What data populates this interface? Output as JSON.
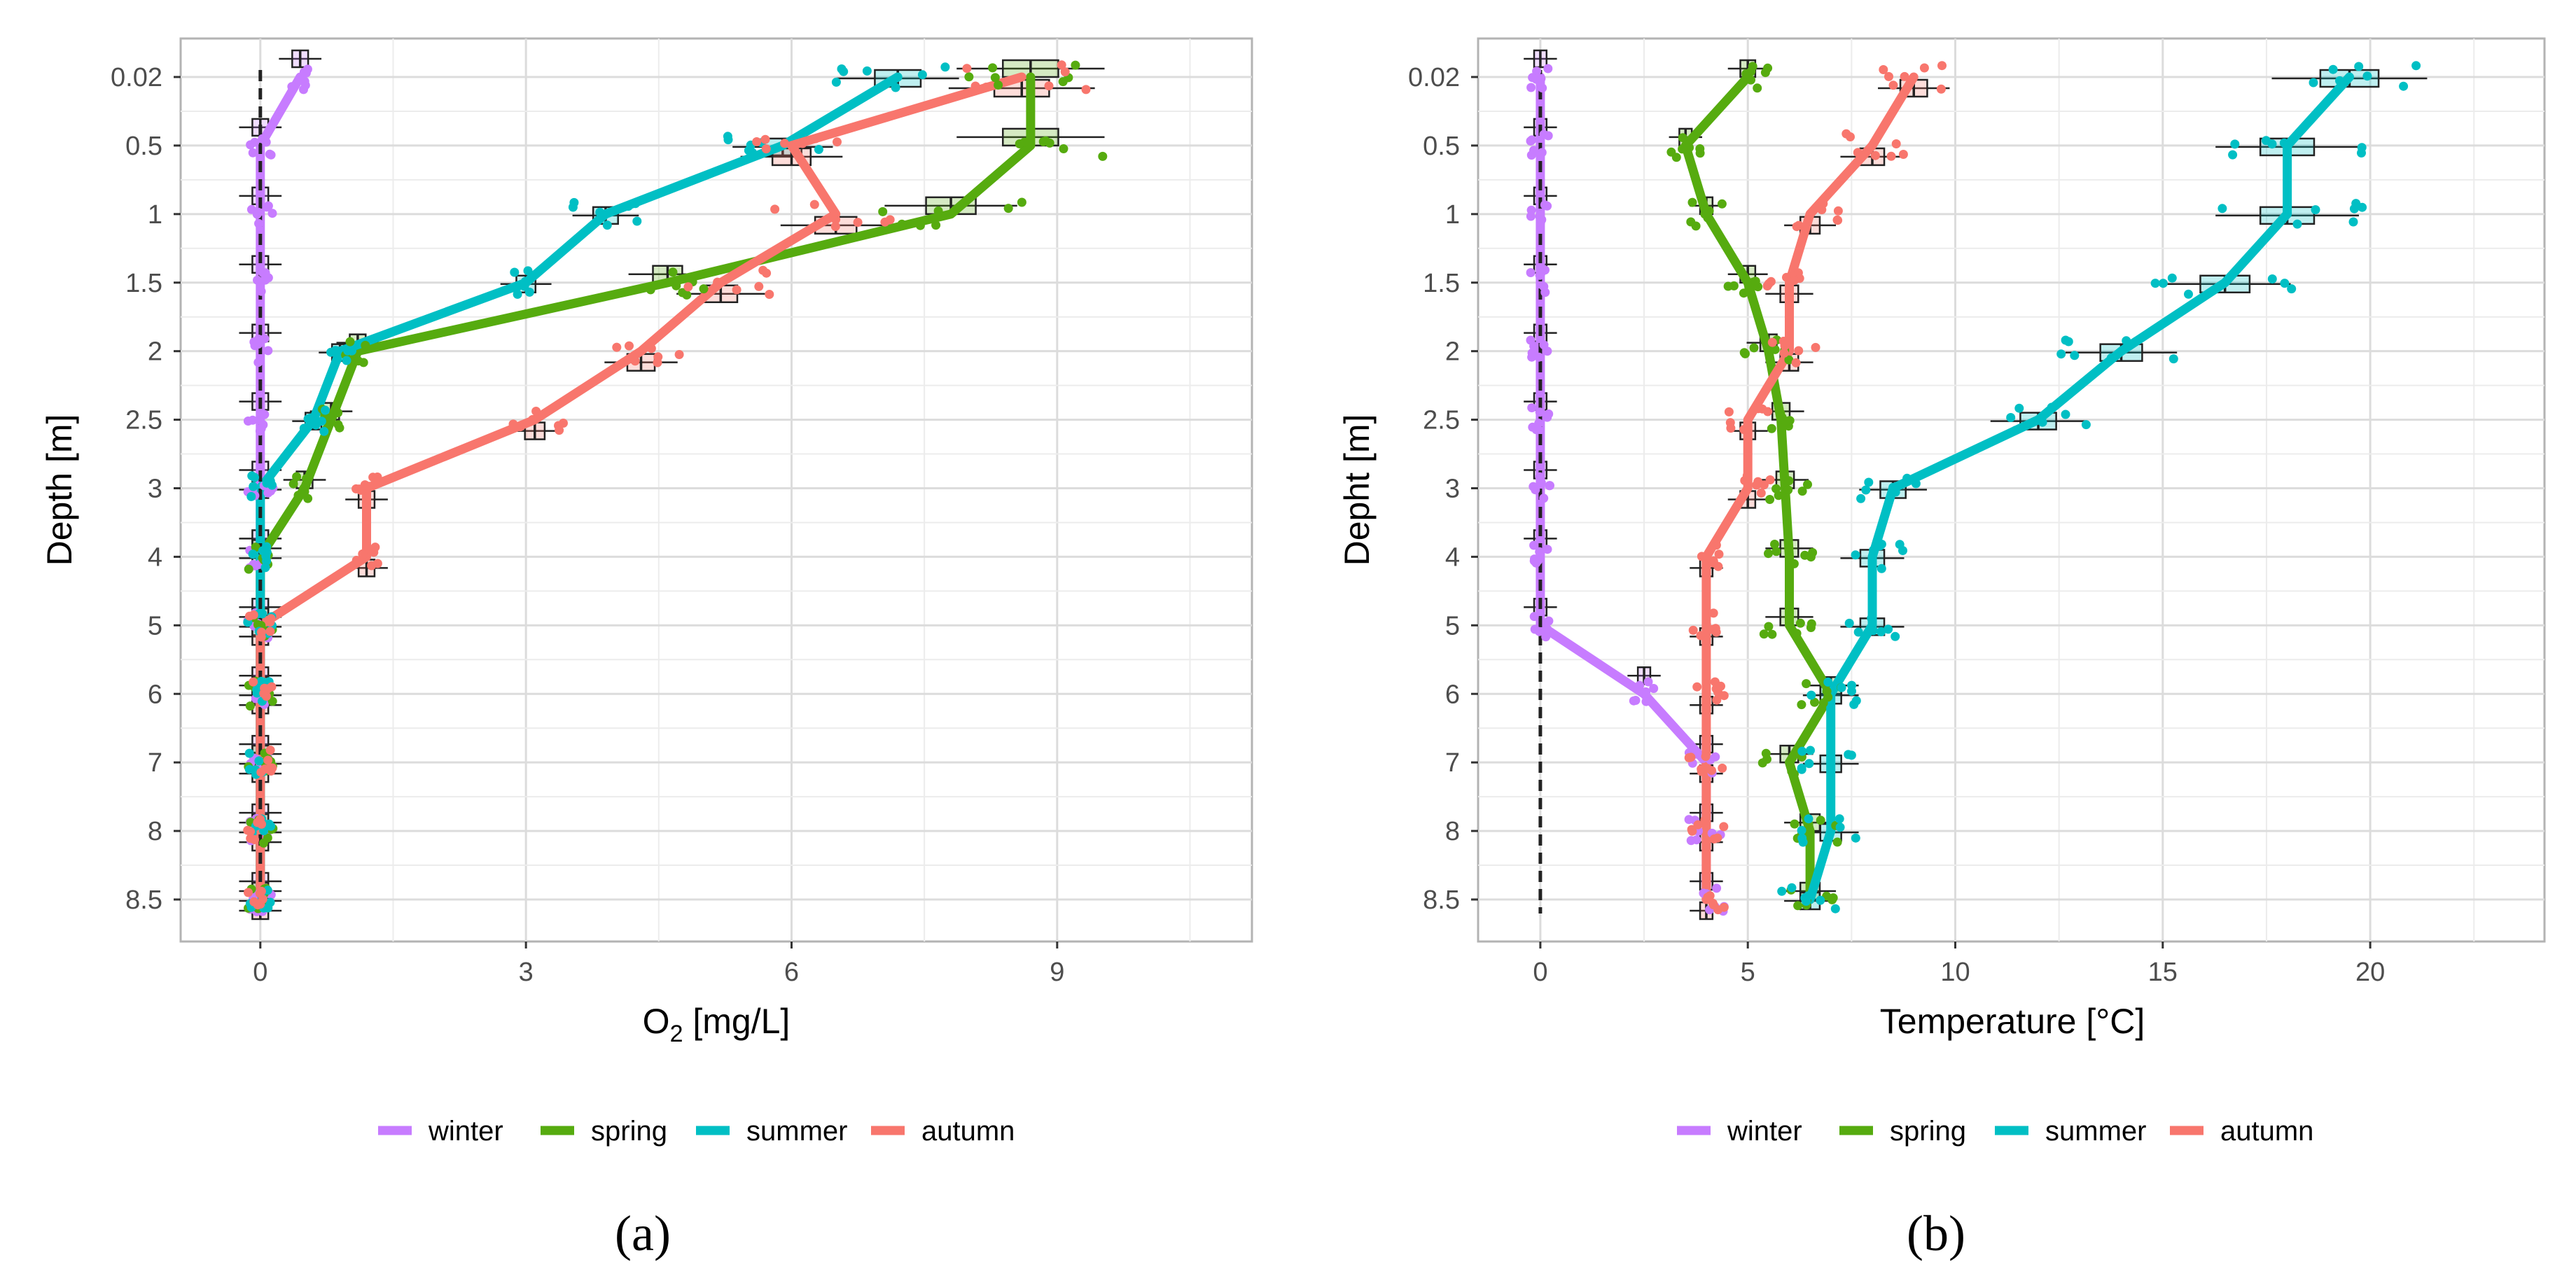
{
  "colors": {
    "winter": "#C77CFF",
    "spring": "#56AB0F",
    "summer": "#00BFC4",
    "autumn": "#F8766D"
  },
  "chart_data": [
    {
      "id": "a",
      "type": "line",
      "panel_label": "(a)",
      "xlabel_main": "O",
      "xlabel_sub": "2",
      "xlabel_rest": " [mg/L]",
      "ylabel": "Depth [m]",
      "xlim": [
        -0.9,
        11.2
      ],
      "x_ticks": [
        "0",
        "3",
        "6",
        "9"
      ],
      "x_tick_values": [
        0,
        3,
        6,
        9
      ],
      "categories": [
        "0.02",
        "0.5",
        "1",
        "1.5",
        "2",
        "2.5",
        "3",
        "4",
        "5",
        "6",
        "7",
        "8",
        "8.5"
      ],
      "series": [
        {
          "name": "winter",
          "values": [
            0.45,
            0.0,
            0.0,
            0.0,
            0.0,
            0.0,
            0.0,
            0.0,
            0.0,
            0.0,
            0.0,
            0.0,
            0.0
          ]
        },
        {
          "name": "spring",
          "values": [
            8.7,
            8.7,
            7.8,
            4.6,
            1.1,
            0.8,
            0.5,
            0.0,
            0.0,
            0.0,
            0.0,
            0.0,
            0.0
          ]
        },
        {
          "name": "summer",
          "values": [
            7.2,
            5.9,
            3.9,
            3.0,
            0.9,
            0.6,
            0.0,
            0.0,
            0.0,
            0.0,
            0.0,
            0.0,
            0.0
          ]
        },
        {
          "name": "autumn",
          "values": [
            8.6,
            6.0,
            6.5,
            5.2,
            4.3,
            3.1,
            1.2,
            1.2,
            0.0,
            0.0,
            0.0,
            0.0,
            0.0
          ]
        }
      ]
    },
    {
      "id": "b",
      "type": "line",
      "panel_label": "(b)",
      "xlabel_main": "Temperature [°C]",
      "xlabel_sub": "",
      "xlabel_rest": "",
      "ylabel": "Depht [m]",
      "xlim": [
        -1.5,
        24.2
      ],
      "x_ticks": [
        "0",
        "5",
        "10",
        "15",
        "20"
      ],
      "x_tick_values": [
        0,
        5,
        10,
        15,
        20
      ],
      "categories": [
        "0.02",
        "0.5",
        "1",
        "1.5",
        "2",
        "2.5",
        "3",
        "4",
        "5",
        "6",
        "7",
        "8",
        "8.5"
      ],
      "series": [
        {
          "name": "winter",
          "values": [
            0.0,
            0.0,
            0.0,
            0.0,
            0.0,
            0.0,
            0.0,
            0.0,
            0.0,
            2.5,
            4.0,
            4.0,
            4.0
          ]
        },
        {
          "name": "spring",
          "values": [
            5.0,
            3.5,
            4.0,
            5.0,
            5.5,
            5.8,
            5.9,
            6.0,
            6.0,
            7.0,
            6.0,
            6.5,
            6.5
          ]
        },
        {
          "name": "summer",
          "values": [
            19.5,
            18.0,
            18.0,
            16.5,
            14.0,
            12.0,
            8.5,
            8.0,
            8.0,
            7.0,
            7.0,
            7.0,
            6.5
          ]
        },
        {
          "name": "autumn",
          "values": [
            9.0,
            8.0,
            6.5,
            6.0,
            6.0,
            5.0,
            5.0,
            4.0,
            4.0,
            4.0,
            4.0,
            4.0,
            4.0
          ]
        }
      ]
    }
  ],
  "legend": [
    {
      "key": "winter",
      "label": "winter"
    },
    {
      "key": "spring",
      "label": "spring"
    },
    {
      "key": "summer",
      "label": "summer"
    },
    {
      "key": "autumn",
      "label": "autumn"
    }
  ]
}
